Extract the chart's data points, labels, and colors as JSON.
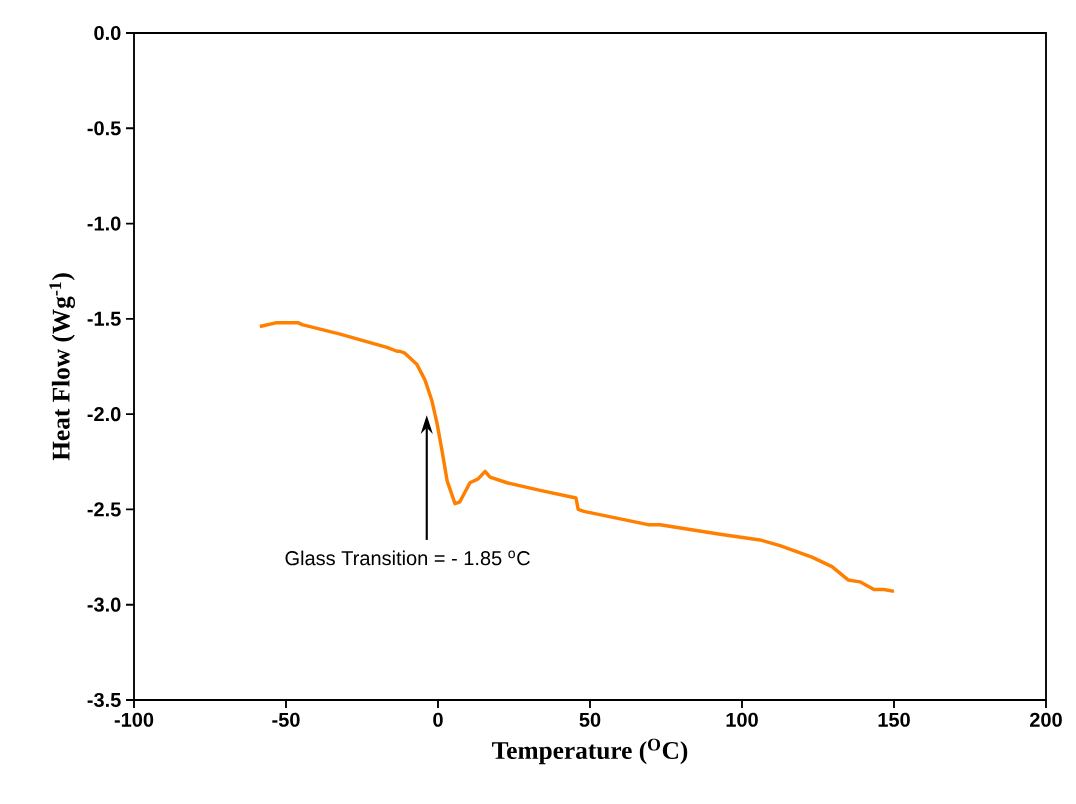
{
  "chart_data": {
    "type": "line",
    "xlabel": "Temperature ($^{O}$C)",
    "ylabel": "Heat Flow (Wg$^{-1}$)",
    "xlim": [
      -100,
      200
    ],
    "ylim": [
      -3.5,
      0
    ],
    "xticks": [
      -100,
      -50,
      0,
      50,
      100,
      150,
      200
    ],
    "yticks": [
      {
        "value": 0,
        "label": "0.0"
      },
      -0.5,
      {
        "value": -1,
        "label": "-1.0"
      },
      -1.5,
      {
        "value": -2,
        "label": "-2.0"
      },
      -2.5,
      {
        "value": -3,
        "label": "-3.0"
      },
      -3.5
    ],
    "grid": false,
    "marker": "none",
    "line_style": "solid",
    "annotations": [
      "Glass Transition = - 1.85 $^{o}$C"
    ],
    "series": [
      {
        "color": "#ff8000",
        "x": [
          -58.6,
          -53.0,
          -47.0,
          -46.1,
          -44.7,
          -32.2,
          -16.8,
          -13.5,
          -12.5,
          -10.9,
          -6.9,
          -4.3,
          -2.0,
          -0.3,
          1.3,
          3.0,
          5.6,
          7.2,
          10.5,
          13.2,
          15.5,
          17.1,
          22.7,
          33.6,
          45.4,
          46.1,
          48.0,
          69.1,
          73.0,
          92.8,
          105.9,
          112.5,
          123.0,
          129.6,
          134.9,
          138.8,
          143.4,
          146.7,
          150.0
        ],
        "values": [
          -1.54,
          -1.52,
          -1.52,
          -1.52,
          -1.53,
          -1.58,
          -1.65,
          -1.67,
          -1.67,
          -1.68,
          -1.74,
          -1.82,
          -1.93,
          -2.05,
          -2.19,
          -2.35,
          -2.47,
          -2.46,
          -2.36,
          -2.34,
          -2.3,
          -2.33,
          -2.36,
          -2.4,
          -2.44,
          -2.5,
          -2.51,
          -2.58,
          -2.58,
          -2.63,
          -2.66,
          -2.69,
          -2.75,
          -2.8,
          -2.87,
          -2.88,
          -2.92,
          -2.92,
          -2.93
        ]
      }
    ]
  }
}
